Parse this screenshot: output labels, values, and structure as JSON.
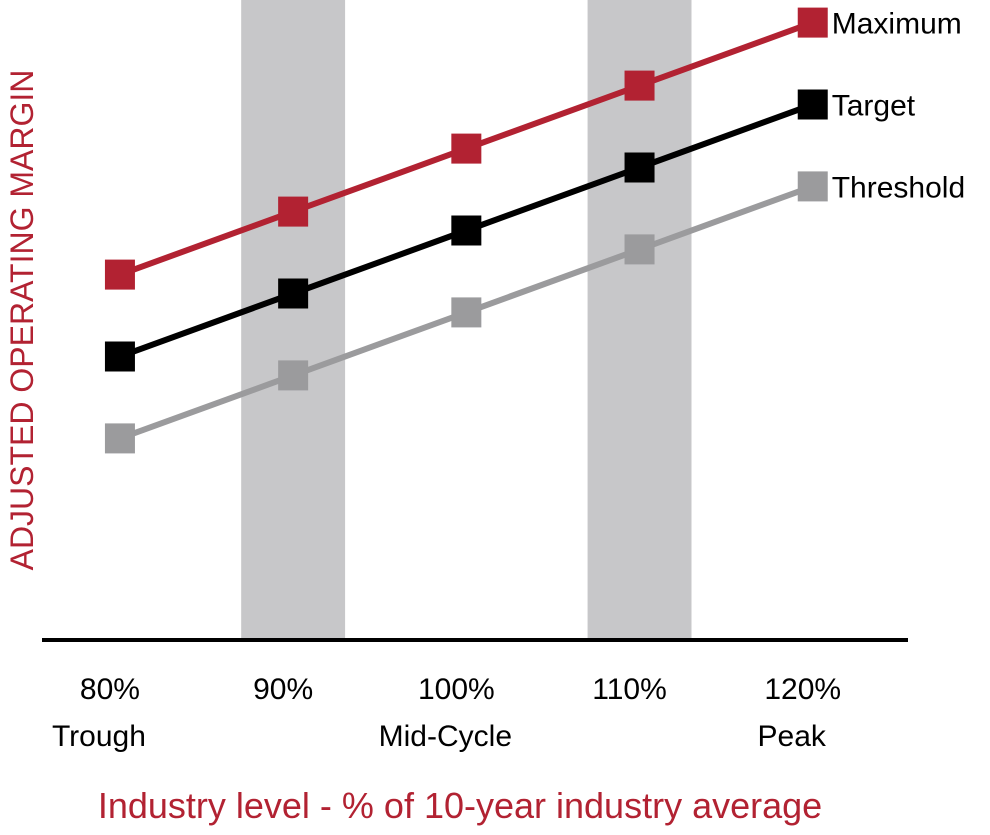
{
  "chart_data": {
    "type": "line",
    "title": "",
    "xlabel": "Industry level - % of 10-year industry average",
    "ylabel": "ADJUSTED OPERATING MARGIN",
    "categories": [
      "80%",
      "90%",
      "100%",
      "110%",
      "120%"
    ],
    "category_sublabels": [
      "Trough",
      "",
      "Mid-Cycle",
      "",
      "Peak"
    ],
    "x": [
      80,
      90,
      100,
      110,
      120
    ],
    "xlim": [
      75.5,
      125.5
    ],
    "ylim": [
      0,
      100
    ],
    "shaded_bands": [
      {
        "from": 87,
        "to": 93
      },
      {
        "from": 107,
        "to": 113
      }
    ],
    "series": [
      {
        "name": "Maximum",
        "values": [
          58,
          68,
          78,
          88,
          98
        ],
        "color": "#b22232"
      },
      {
        "name": "Target",
        "values": [
          45,
          55,
          65,
          75,
          85
        ],
        "color": "#000000"
      },
      {
        "name": "Threshold",
        "values": [
          32,
          42,
          52,
          62,
          72
        ],
        "color": "#9b9b9d"
      }
    ],
    "legend_position": "right-end",
    "grid": false
  },
  "colors": {
    "band": "#c7c7c9",
    "axis": "#000000",
    "label_accent": "#b22232"
  }
}
